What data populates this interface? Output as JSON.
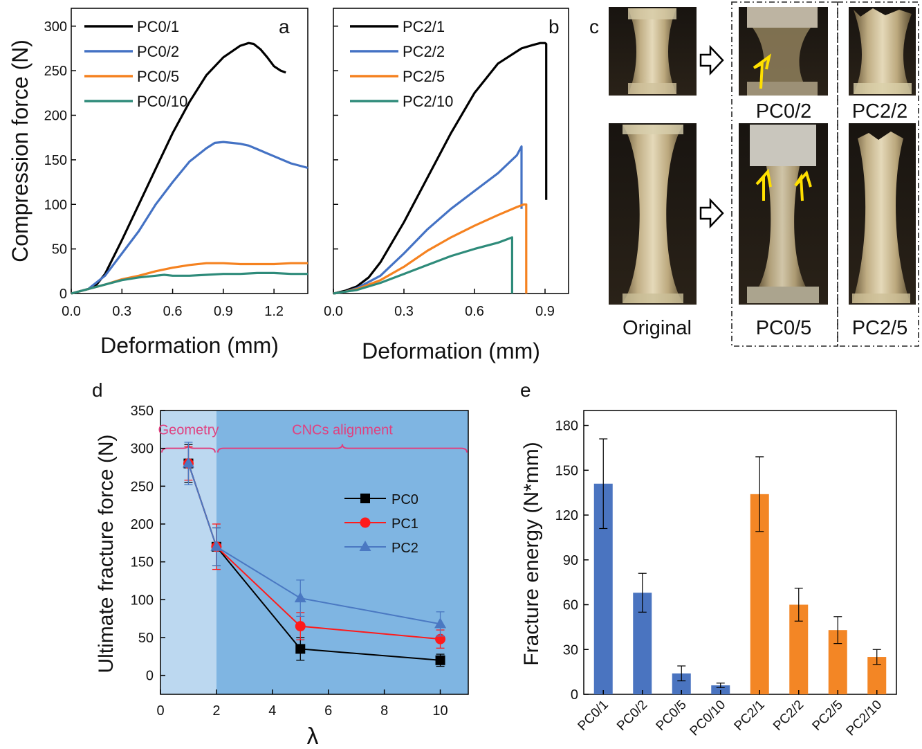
{
  "panels": {
    "a": "a",
    "b": "b",
    "c": "c",
    "d": "d",
    "e": "e"
  },
  "colors": {
    "black": "#000000",
    "blue": "#4472C4",
    "orange": "#F58220",
    "teal": "#2E8B7A",
    "red": "#ff1a1a",
    "pc2blue": "#4a78c2",
    "bar_blue": "#4a74c0",
    "bar_orange": "#f38625",
    "region_light": "#bcd8f0",
    "region_dark": "#7fb5e2",
    "brace": "#e0407f",
    "arrow": "#ffe000"
  },
  "chart_data": [
    {
      "panel": "a",
      "type": "line",
      "xlabel": "Deformation (mm)",
      "ylabel": "Compression force (N)",
      "xlim": [
        0,
        1.4
      ],
      "ylim": [
        0,
        320
      ],
      "xticks": [
        "0.0",
        "0.3",
        "0.6",
        "0.9",
        "1.2"
      ],
      "yticks": [
        "0",
        "50",
        "100",
        "150",
        "200",
        "250",
        "300"
      ],
      "legend_position": "top-left",
      "series": [
        {
          "name": "PC0/1",
          "color": "#000000",
          "x": [
            0,
            0.1,
            0.15,
            0.2,
            0.3,
            0.4,
            0.5,
            0.6,
            0.7,
            0.8,
            0.9,
            1.0,
            1.05,
            1.08,
            1.12,
            1.16,
            1.2,
            1.24,
            1.27
          ],
          "y": [
            0,
            5,
            10,
            22,
            60,
            100,
            140,
            180,
            215,
            245,
            265,
            278,
            281,
            280,
            274,
            265,
            255,
            250,
            248
          ]
        },
        {
          "name": "PC0/2",
          "color": "#4472C4",
          "x": [
            0,
            0.1,
            0.2,
            0.3,
            0.4,
            0.5,
            0.6,
            0.7,
            0.8,
            0.85,
            0.9,
            0.95,
            1.0,
            1.05,
            1.1,
            1.2,
            1.3,
            1.4
          ],
          "y": [
            0,
            5,
            20,
            45,
            70,
            100,
            125,
            148,
            163,
            169,
            170,
            169,
            168,
            166,
            162,
            154,
            146,
            141
          ]
        },
        {
          "name": "PC0/5",
          "color": "#F58220",
          "x": [
            0,
            0.1,
            0.2,
            0.3,
            0.4,
            0.5,
            0.6,
            0.7,
            0.8,
            0.9,
            1.0,
            1.1,
            1.2,
            1.3,
            1.4
          ],
          "y": [
            0,
            5,
            10,
            16,
            20,
            25,
            29,
            32,
            34,
            34,
            33,
            33,
            33,
            34,
            34
          ]
        },
        {
          "name": "PC0/10",
          "color": "#2E8B7A",
          "x": [
            0,
            0.1,
            0.2,
            0.3,
            0.4,
            0.5,
            0.55,
            0.6,
            0.7,
            0.8,
            0.9,
            1.0,
            1.1,
            1.2,
            1.3,
            1.4
          ],
          "y": [
            0,
            5,
            10,
            15,
            18,
            20,
            21,
            20,
            20,
            21,
            22,
            22,
            23,
            23,
            22,
            22
          ]
        }
      ]
    },
    {
      "panel": "b",
      "type": "line",
      "xlabel": "Deformation (mm)",
      "ylabel": "",
      "xlim": [
        0,
        1.0
      ],
      "ylim": [
        0,
        320
      ],
      "xticks": [
        "0.0",
        "0.3",
        "0.6",
        "0.9"
      ],
      "legend_position": "top-left",
      "series": [
        {
          "name": "PC2/1",
          "color": "#000000",
          "x": [
            0,
            0.05,
            0.1,
            0.15,
            0.2,
            0.3,
            0.4,
            0.5,
            0.6,
            0.7,
            0.8,
            0.85,
            0.88,
            0.9,
            0.905,
            0.905
          ],
          "y": [
            0,
            3,
            8,
            18,
            35,
            80,
            130,
            180,
            225,
            258,
            275,
            279,
            281,
            281,
            280,
            105
          ]
        },
        {
          "name": "PC2/2",
          "color": "#4472C4",
          "x": [
            0,
            0.05,
            0.1,
            0.2,
            0.3,
            0.4,
            0.5,
            0.6,
            0.7,
            0.78,
            0.8,
            0.8
          ],
          "y": [
            0,
            2,
            6,
            20,
            45,
            72,
            95,
            115,
            135,
            155,
            165,
            95
          ]
        },
        {
          "name": "PC2/5",
          "color": "#F58220",
          "x": [
            0,
            0.05,
            0.1,
            0.2,
            0.3,
            0.4,
            0.5,
            0.6,
            0.7,
            0.78,
            0.81,
            0.82,
            0.82
          ],
          "y": [
            0,
            2,
            5,
            15,
            30,
            48,
            63,
            76,
            88,
            97,
            100,
            100,
            0
          ]
        },
        {
          "name": "PC2/10",
          "color": "#2E8B7A",
          "x": [
            0,
            0.05,
            0.1,
            0.2,
            0.3,
            0.4,
            0.5,
            0.6,
            0.7,
            0.75,
            0.76,
            0.76
          ],
          "y": [
            0,
            2,
            4,
            12,
            22,
            32,
            42,
            50,
            57,
            62,
            63,
            0
          ]
        }
      ]
    },
    {
      "panel": "d",
      "type": "line",
      "xlabel": "λ",
      "ylabel": "Ultimate fracture force (N)",
      "xlim": [
        0,
        11
      ],
      "ylim": [
        -25,
        350
      ],
      "xticks": [
        "0",
        "2",
        "4",
        "6",
        "8",
        "10"
      ],
      "yticks": [
        "0",
        "50",
        "100",
        "150",
        "200",
        "250",
        "300",
        "350"
      ],
      "regions": [
        {
          "label": "Geometry",
          "x": [
            0,
            2
          ]
        },
        {
          "label": "CNCs alignment",
          "x": [
            2,
            11
          ]
        }
      ],
      "legend_position": "center-right",
      "series": [
        {
          "name": "PC0",
          "color": "#000000",
          "marker": "square",
          "x": [
            1,
            2,
            5,
            10
          ],
          "y": [
            280,
            170,
            35,
            20
          ],
          "err": [
            25,
            25,
            15,
            8
          ]
        },
        {
          "name": "PC1",
          "color": "#ff1a1a",
          "marker": "circle",
          "x": [
            1,
            2,
            5,
            10
          ],
          "y": [
            280,
            170,
            65,
            48
          ],
          "err": [
            22,
            30,
            18,
            12
          ]
        },
        {
          "name": "PC2",
          "color": "#4a78c2",
          "marker": "triangle",
          "x": [
            1,
            2,
            5,
            10
          ],
          "y": [
            280,
            170,
            102,
            68
          ],
          "err": [
            28,
            25,
            24,
            16
          ]
        }
      ]
    },
    {
      "panel": "e",
      "type": "bar",
      "xlabel": "",
      "ylabel": "Fracture energy (N*mm)",
      "ylim": [
        0,
        190
      ],
      "yticks": [
        "0",
        "30",
        "60",
        "90",
        "120",
        "150",
        "180"
      ],
      "categories": [
        "PC0/1",
        "PC0/2",
        "PC0/5",
        "PC0/10",
        "PC2/1",
        "PC2/2",
        "PC2/5",
        "PC2/10"
      ],
      "values": [
        141,
        68,
        14,
        6,
        134,
        60,
        43,
        25
      ],
      "errors": [
        30,
        13,
        5,
        1.5,
        25,
        11,
        9,
        5
      ],
      "bar_colors": [
        "#4a74c0",
        "#4a74c0",
        "#4a74c0",
        "#4a74c0",
        "#f38625",
        "#f38625",
        "#f38625",
        "#f38625"
      ]
    }
  ],
  "photos": {
    "original": "Original",
    "pc0_2": "PC0/2",
    "pc0_5": "PC0/5",
    "pc2_2": "PC2/2",
    "pc2_5": "PC2/5"
  }
}
